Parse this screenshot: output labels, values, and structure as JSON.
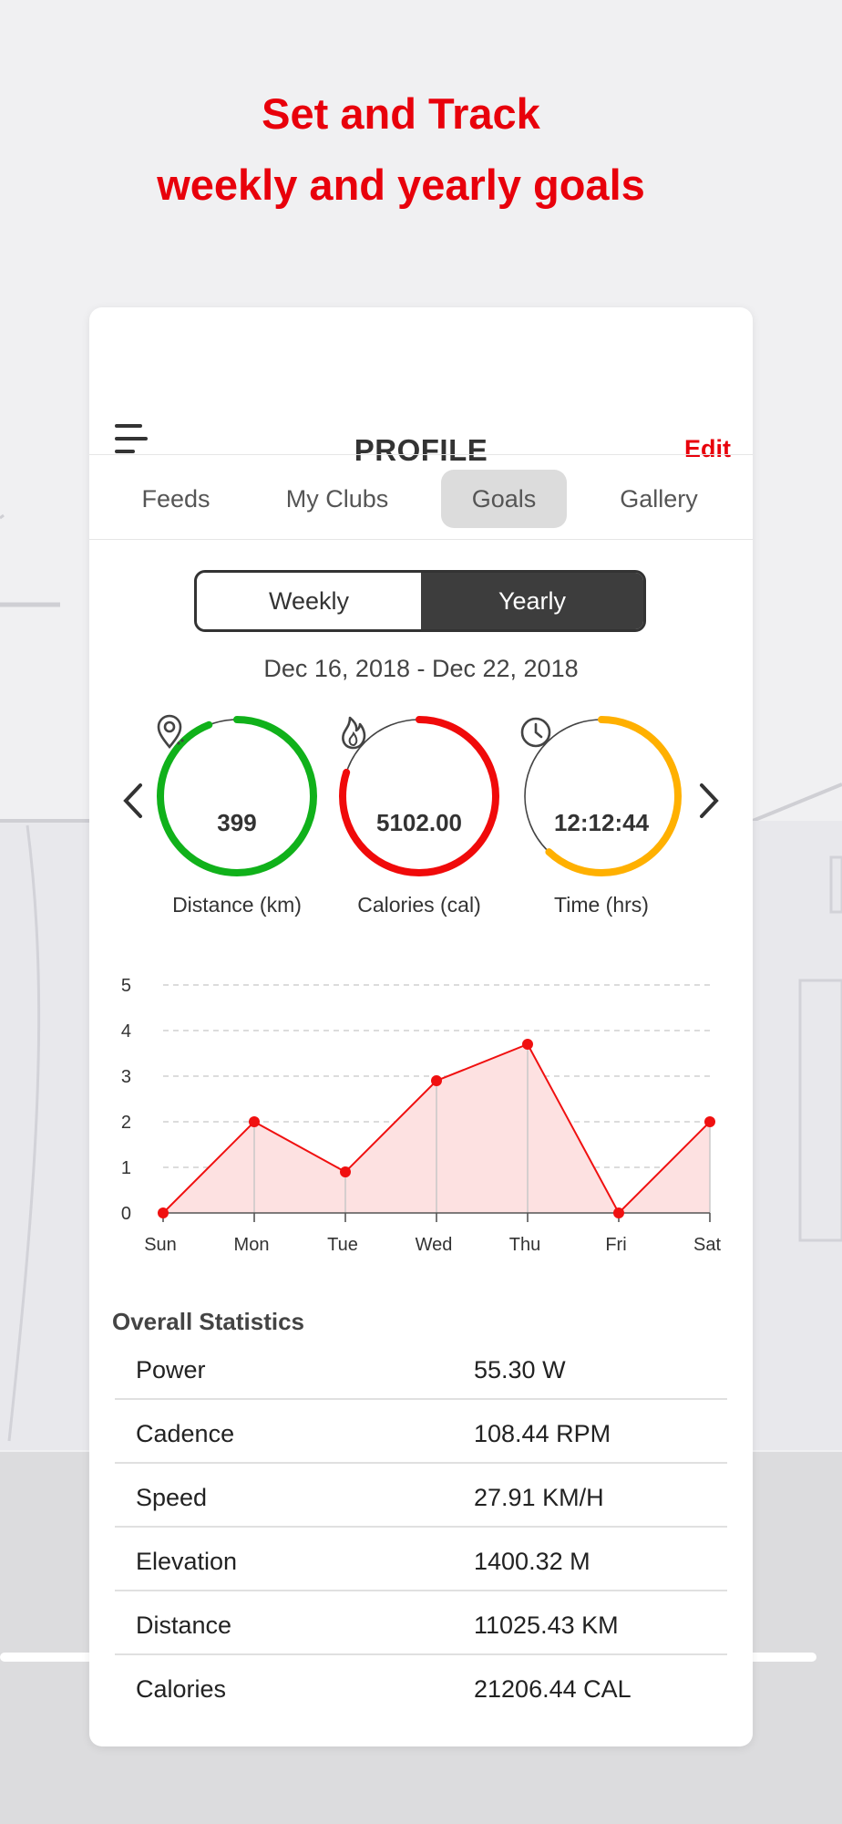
{
  "headline": {
    "line1": "Set and Track",
    "line2": "weekly and yearly goals"
  },
  "colors": {
    "accent": "#e8000b",
    "distance_ring": "#10b11a",
    "calories_ring": "#f00a0a",
    "time_ring": "#ffb000",
    "chart_line": "#f01010",
    "chart_fill": "#fde1e1"
  },
  "header": {
    "menu_icon": "menu-icon",
    "title": "PROFILE",
    "edit_label": "Edit"
  },
  "tabs": [
    {
      "label": "Feeds",
      "active": false
    },
    {
      "label": "My Clubs",
      "active": false
    },
    {
      "label": "Goals",
      "active": true
    },
    {
      "label": "Gallery",
      "active": false
    }
  ],
  "period_toggle": {
    "weekly_label": "Weekly",
    "yearly_label": "Yearly",
    "selected": "Yearly"
  },
  "date_range": "Dec 16, 2018 - Dec 22, 2018",
  "goals": [
    {
      "icon": "location-pin-icon",
      "value": "399",
      "label": "Distance (km)",
      "progress": 0.94
    },
    {
      "icon": "flame-icon",
      "value": "5102.00",
      "label": "Calories (cal)",
      "progress": 0.8
    },
    {
      "icon": "clock-icon",
      "value": "12:12:44",
      "label": "Time (hrs)",
      "progress": 0.62
    }
  ],
  "chart_data": {
    "type": "area",
    "categories": [
      "Sun",
      "Mon",
      "Tue",
      "Wed",
      "Thu",
      "Fri",
      "Sat"
    ],
    "values": [
      0,
      2,
      0.9,
      2.9,
      3.7,
      0,
      2
    ],
    "yticks": [
      "0",
      "1",
      "2",
      "3",
      "4",
      "5"
    ],
    "ylim": [
      0,
      5
    ],
    "grid": true
  },
  "stats": {
    "title": "Overall Statistics",
    "rows": [
      {
        "label": "Power",
        "value": "55.30 W"
      },
      {
        "label": "Cadence",
        "value": "108.44 RPM"
      },
      {
        "label": "Speed",
        "value": "27.91 KM/H"
      },
      {
        "label": "Elevation",
        "value": "1400.32 M"
      },
      {
        "label": "Distance",
        "value": "11025.43 KM"
      },
      {
        "label": "Calories",
        "value": "21206.44 CAL"
      }
    ]
  }
}
